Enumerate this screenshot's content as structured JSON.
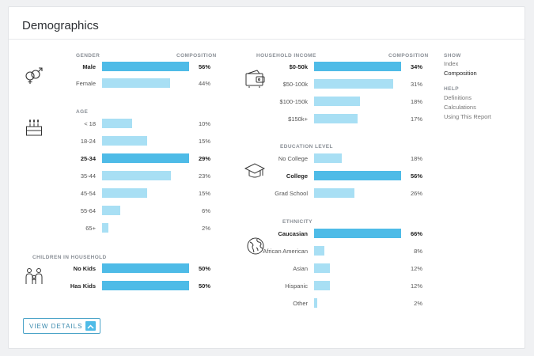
{
  "title": "Demographics",
  "colors": {
    "bar_highlight": "#4ebbe7",
    "bar_normal": "#a8dff4",
    "button_border": "#4aa3c8"
  },
  "composition_header": "COMPOSITION",
  "gender": {
    "header": "GENDER",
    "icon": "gender-icon",
    "rows": [
      {
        "label": "Male",
        "value": "56%",
        "pct": 56,
        "highlight": true
      },
      {
        "label": "Female",
        "value": "44%",
        "pct": 44,
        "highlight": false
      }
    ]
  },
  "age": {
    "header": "AGE",
    "icon": "birthday-cake-icon",
    "rows": [
      {
        "label": "< 18",
        "value": "10%",
        "pct": 10,
        "highlight": false
      },
      {
        "label": "18-24",
        "value": "15%",
        "pct": 15,
        "highlight": false
      },
      {
        "label": "25-34",
        "value": "29%",
        "pct": 29,
        "highlight": true
      },
      {
        "label": "35-44",
        "value": "23%",
        "pct": 23,
        "highlight": false
      },
      {
        "label": "45-54",
        "value": "15%",
        "pct": 15,
        "highlight": false
      },
      {
        "label": "55-64",
        "value": "6%",
        "pct": 6,
        "highlight": false
      },
      {
        "label": "65+",
        "value": "2%",
        "pct": 2,
        "highlight": false
      }
    ]
  },
  "children": {
    "header": "CHILDREN IN HOUSEHOLD",
    "icon": "family-icon",
    "rows": [
      {
        "label": "No Kids",
        "value": "50%",
        "pct": 50,
        "highlight": true
      },
      {
        "label": "Has Kids",
        "value": "50%",
        "pct": 50,
        "highlight": true
      }
    ]
  },
  "income": {
    "header": "HOUSEHOLD INCOME",
    "icon": "wallet-icon",
    "rows": [
      {
        "label": "$0-50k",
        "value": "34%",
        "pct": 34,
        "highlight": true
      },
      {
        "label": "$50-100k",
        "value": "31%",
        "pct": 31,
        "highlight": false
      },
      {
        "label": "$100-150k",
        "value": "18%",
        "pct": 18,
        "highlight": false
      },
      {
        "label": "$150k+",
        "value": "17%",
        "pct": 17,
        "highlight": false
      }
    ]
  },
  "education": {
    "header": "EDUCATION LEVEL",
    "icon": "graduation-cap-icon",
    "rows": [
      {
        "label": "No College",
        "value": "18%",
        "pct": 18,
        "highlight": false
      },
      {
        "label": "College",
        "value": "56%",
        "pct": 56,
        "highlight": true
      },
      {
        "label": "Grad School",
        "value": "26%",
        "pct": 26,
        "highlight": false
      }
    ]
  },
  "ethnicity": {
    "header": "ETHNICITY",
    "icon": "globe-icon",
    "rows": [
      {
        "label": "Caucasian",
        "value": "66%",
        "pct": 66,
        "highlight": true
      },
      {
        "label": "African American",
        "value": "8%",
        "pct": 8,
        "highlight": false
      },
      {
        "label": "Asian",
        "value": "12%",
        "pct": 12,
        "highlight": false
      },
      {
        "label": "Hispanic",
        "value": "12%",
        "pct": 12,
        "highlight": false
      },
      {
        "label": "Other",
        "value": "2%",
        "pct": 2,
        "highlight": false
      }
    ]
  },
  "sidebar": {
    "show_header": "SHOW",
    "show_items": [
      {
        "label": "Index",
        "active": false
      },
      {
        "label": "Composition",
        "active": true
      }
    ],
    "help_header": "HELP",
    "help_items": [
      {
        "label": "Definitions"
      },
      {
        "label": "Calculations"
      },
      {
        "label": "Using This Report"
      }
    ]
  },
  "view_details": {
    "label": "VIEW DETAILS",
    "icon": "chevron-up-icon"
  }
}
